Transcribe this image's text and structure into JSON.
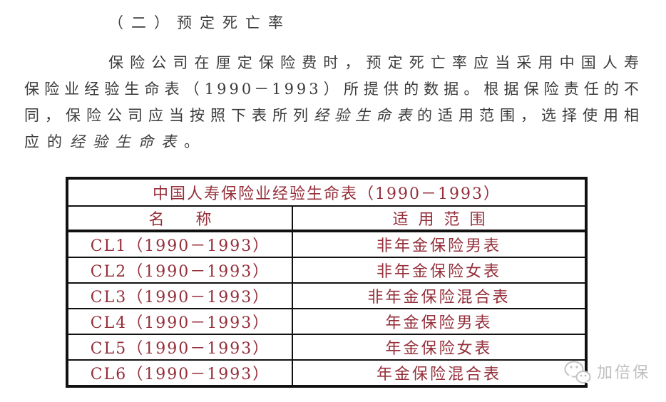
{
  "page": {
    "heading": "（二）预定死亡率"
  },
  "paragraph": {
    "lines": [
      {
        "indent": true,
        "justify": true,
        "segments": [
          {
            "text": "保险公司在厘定保险费时，预定死亡率应当采用中国人寿"
          }
        ]
      },
      {
        "justify": true,
        "segments": [
          {
            "text": "保险业经验生命表（1990－1993）所提供的数据。根据保险责任的不"
          }
        ]
      },
      {
        "justify": true,
        "segments": [
          {
            "text": "同，保险公司应当按照下表所列"
          },
          {
            "text": "经验生命表",
            "italic": true
          },
          {
            "text": "的适用范围，选择使用相"
          }
        ]
      },
      {
        "segments": [
          {
            "text": "应的"
          },
          {
            "text": "经验生命表",
            "italic": true
          },
          {
            "text": "。"
          }
        ]
      }
    ]
  },
  "table": {
    "title": "中国人寿保险业经验生命表（1990－1993）",
    "headers": {
      "name": "名　　称",
      "scope": "适用范围"
    },
    "rows": [
      {
        "name": "CL1（1990－1993）",
        "scope": "非年金保险男表"
      },
      {
        "name": "CL2（1990－1993）",
        "scope": "非年金保险女表"
      },
      {
        "name": "CL3（1990－1993）",
        "scope": "非年金保险混合表"
      },
      {
        "name": "CL4（1990－1993）",
        "scope": "年金保险男表"
      },
      {
        "name": "CL5（1990－1993）",
        "scope": "年金保险女表"
      },
      {
        "name": "CL6（1990－1993）",
        "scope": "年金保险混合表"
      }
    ]
  },
  "watermark": {
    "label": "加倍保",
    "icon": "wechat-icon"
  },
  "colors": {
    "body_text": "#3b3b3b",
    "table_text": "#952f3a",
    "table_border": "#111111",
    "watermark": "#c0c0c0"
  }
}
